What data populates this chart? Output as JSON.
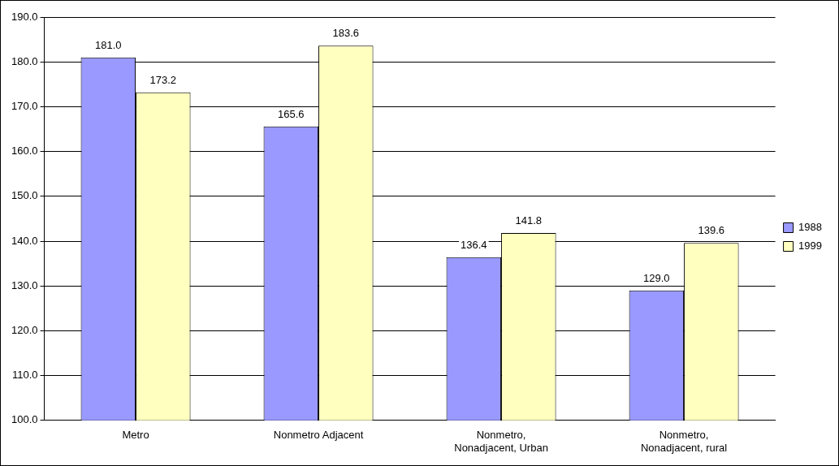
{
  "chart_data": {
    "type": "bar",
    "categories": [
      "Metro",
      "Nonmetro Adjacent",
      "Nonmetro, Nonadjacent, Urban",
      "Nonmetro, Nonadjacent, rural"
    ],
    "series": [
      {
        "name": "1988",
        "color": "#9999ff",
        "values": [
          181.0,
          165.6,
          136.4,
          129.0
        ],
        "value_labels": [
          "181.0",
          "165.6",
          "136.4",
          "129.0"
        ]
      },
      {
        "name": "1999",
        "color": "#ffffc0",
        "values": [
          173.2,
          183.6,
          141.8,
          139.6
        ],
        "value_labels": [
          "173.2",
          "183.6",
          "141.8",
          "139.6"
        ]
      }
    ],
    "ylim": [
      100,
      190
    ],
    "yticks": [
      {
        "value": 100,
        "label": "100.0"
      },
      {
        "value": 110,
        "label": "110.0"
      },
      {
        "value": 120,
        "label": "120.0"
      },
      {
        "value": 130,
        "label": "130.0"
      },
      {
        "value": 140,
        "label": "140.0"
      },
      {
        "value": 150,
        "label": "150.0"
      },
      {
        "value": 160,
        "label": "160.0"
      },
      {
        "value": 170,
        "label": "170.0"
      },
      {
        "value": 180,
        "label": "180.0"
      },
      {
        "value": 190,
        "label": "190.0"
      }
    ],
    "grid": "y",
    "legend": "right"
  }
}
